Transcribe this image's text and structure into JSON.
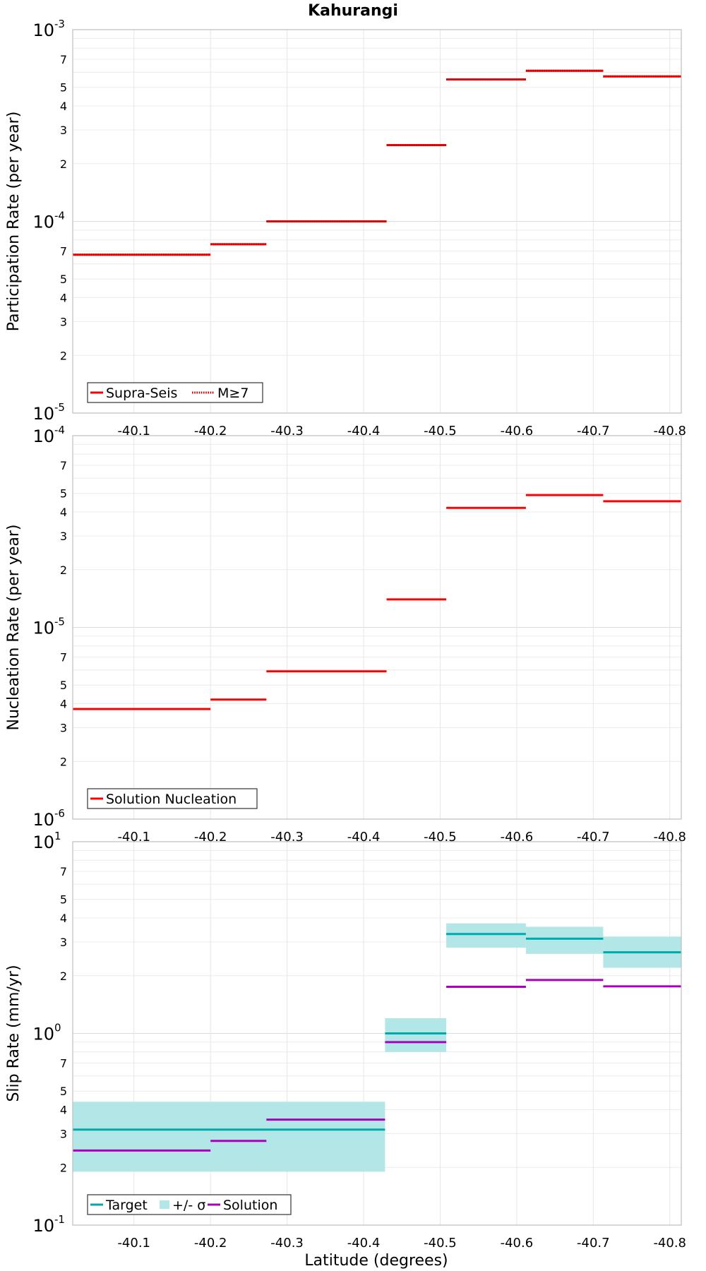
{
  "title": "Kahurangi",
  "xlabel": "Latitude (degrees)",
  "x_ticks": [
    -40.1,
    -40.2,
    -40.3,
    -40.4,
    -40.5,
    -40.6,
    -40.7,
    -40.8
  ],
  "x_tick_labels": [
    "-40.1",
    "-40.2",
    "-40.3",
    "-40.4",
    "-40.5",
    "-40.6",
    "-40.7",
    "-40.8"
  ],
  "chart_data": [
    {
      "type": "line",
      "title": "Kahurangi",
      "xlabel": "",
      "ylabel": "Participation Rate (per year)",
      "y_scale": "log",
      "xlim": [
        -40.02,
        -40.815
      ],
      "ylim": [
        1e-05,
        0.001
      ],
      "y_major_labels": [
        {
          "base": "10",
          "exp": "-5"
        },
        {
          "base": "10",
          "exp": "-4"
        },
        {
          "base": "10",
          "exp": "-3"
        }
      ],
      "minor_tick_labels": [
        "2",
        "3",
        "4",
        "5",
        "7"
      ],
      "legend_position": "bottom-left",
      "series": [
        {
          "name": "Supra-Seis",
          "color": "#ff0000",
          "style": "solid",
          "segments": [
            {
              "x0": -40.02,
              "x1": -40.2,
              "y": 6.7e-05
            },
            {
              "x0": -40.2,
              "x1": -40.273,
              "y": 7.6e-05
            },
            {
              "x0": -40.273,
              "x1": -40.43,
              "y": 0.0001
            },
            {
              "x0": -40.43,
              "x1": -40.508,
              "y": 0.00025
            },
            {
              "x0": -40.508,
              "x1": -40.612,
              "y": 0.00055
            },
            {
              "x0": -40.612,
              "x1": -40.713,
              "y": 0.00061
            },
            {
              "x0": -40.713,
              "x1": -40.815,
              "y": 0.00057
            }
          ]
        },
        {
          "name": "M≥7",
          "color": "#ff0000",
          "style": "dotted",
          "segments": [
            {
              "x0": -40.02,
              "x1": -40.2,
              "y": 6.7e-05
            },
            {
              "x0": -40.2,
              "x1": -40.273,
              "y": 7.6e-05
            },
            {
              "x0": -40.273,
              "x1": -40.43,
              "y": 0.0001
            },
            {
              "x0": -40.43,
              "x1": -40.508,
              "y": 0.00025
            },
            {
              "x0": -40.508,
              "x1": -40.612,
              "y": 0.00055
            },
            {
              "x0": -40.612,
              "x1": -40.713,
              "y": 0.00061
            },
            {
              "x0": -40.713,
              "x1": -40.815,
              "y": 0.00057
            }
          ]
        }
      ]
    },
    {
      "type": "line",
      "title": "",
      "xlabel": "",
      "ylabel": "Nucleation Rate (per year)",
      "y_scale": "log",
      "xlim": [
        -40.02,
        -40.815
      ],
      "ylim": [
        1e-06,
        0.0001
      ],
      "y_major_labels": [
        {
          "base": "10",
          "exp": "-6"
        },
        {
          "base": "10",
          "exp": "-5"
        },
        {
          "base": "10",
          "exp": "-4"
        }
      ],
      "minor_tick_labels": [
        "2",
        "3",
        "4",
        "5",
        "7"
      ],
      "legend_position": "bottom-left",
      "series": [
        {
          "name": "Solution Nucleation",
          "color": "#ff0000",
          "style": "solid",
          "segments": [
            {
              "x0": -40.02,
              "x1": -40.2,
              "y": 3.75e-06
            },
            {
              "x0": -40.2,
              "x1": -40.273,
              "y": 4.2e-06
            },
            {
              "x0": -40.273,
              "x1": -40.43,
              "y": 5.9e-06
            },
            {
              "x0": -40.43,
              "x1": -40.508,
              "y": 1.4e-05
            },
            {
              "x0": -40.508,
              "x1": -40.612,
              "y": 4.2e-05
            },
            {
              "x0": -40.612,
              "x1": -40.713,
              "y": 4.9e-05
            },
            {
              "x0": -40.713,
              "x1": -40.815,
              "y": 4.55e-05
            }
          ]
        }
      ]
    },
    {
      "type": "line",
      "title": "",
      "xlabel": "Latitude (degrees)",
      "ylabel": "Slip Rate (mm/yr)",
      "y_scale": "log",
      "xlim": [
        -40.02,
        -40.815
      ],
      "ylim": [
        0.1,
        10
      ],
      "y_major_labels": [
        {
          "base": "10",
          "exp": "-1"
        },
        {
          "base": "10",
          "exp": "0"
        },
        {
          "base": "10",
          "exp": "1"
        }
      ],
      "minor_tick_labels": [
        "2",
        "3",
        "4",
        "5",
        "7"
      ],
      "legend_position": "bottom-left",
      "series": [
        {
          "name": "Target",
          "color": "#00aaaa",
          "style": "solid",
          "segments": [
            {
              "x0": -40.02,
              "x1": -40.428,
              "y": 0.315
            },
            {
              "x0": -40.428,
              "x1": -40.508,
              "y": 1.0
            },
            {
              "x0": -40.508,
              "x1": -40.612,
              "y": 3.3
            },
            {
              "x0": -40.612,
              "x1": -40.713,
              "y": 3.12
            },
            {
              "x0": -40.713,
              "x1": -40.815,
              "y": 2.65
            }
          ]
        },
        {
          "name": "+/- σ",
          "color": "#b3e6e6",
          "style": "band",
          "segments": [
            {
              "x0": -40.02,
              "x1": -40.428,
              "low": 0.19,
              "high": 0.44
            },
            {
              "x0": -40.428,
              "x1": -40.508,
              "low": 0.8,
              "high": 1.2
            },
            {
              "x0": -40.508,
              "x1": -40.612,
              "low": 2.8,
              "high": 3.75
            },
            {
              "x0": -40.612,
              "x1": -40.713,
              "low": 2.6,
              "high": 3.6
            },
            {
              "x0": -40.713,
              "x1": -40.815,
              "low": 2.2,
              "high": 3.2
            }
          ]
        },
        {
          "name": "Solution",
          "color": "#aa00bb",
          "style": "solid",
          "segments": [
            {
              "x0": -40.02,
              "x1": -40.2,
              "y": 0.245
            },
            {
              "x0": -40.2,
              "x1": -40.273,
              "y": 0.275
            },
            {
              "x0": -40.273,
              "x1": -40.428,
              "y": 0.355
            },
            {
              "x0": -40.428,
              "x1": -40.508,
              "y": 0.9
            },
            {
              "x0": -40.508,
              "x1": -40.612,
              "y": 1.75
            },
            {
              "x0": -40.612,
              "x1": -40.713,
              "y": 1.9
            },
            {
              "x0": -40.713,
              "x1": -40.815,
              "y": 1.76
            }
          ]
        }
      ]
    }
  ]
}
